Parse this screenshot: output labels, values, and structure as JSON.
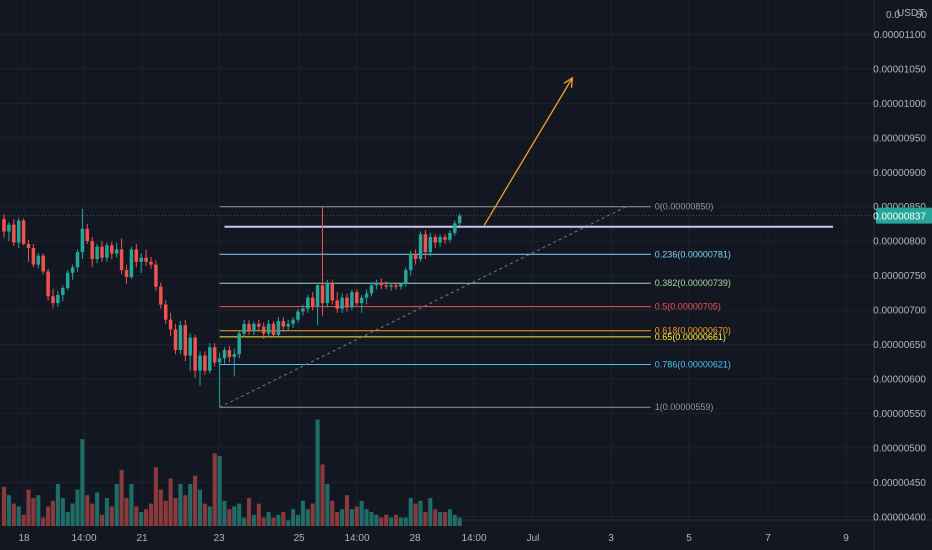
{
  "chart_data": {
    "type": "candlestick",
    "currency": "USDT",
    "scale_label_top": "0.0",
    "scale_label_extra": "50",
    "ylim": [
      3.75e-06,
      1.15e-05
    ],
    "y_ticks": [
      {
        "label": "0.00001100",
        "value": 1.1e-05
      },
      {
        "label": "0.00001050",
        "value": 1.05e-05
      },
      {
        "label": "0.00001000",
        "value": 1e-05
      },
      {
        "label": "0.00000950",
        "value": 9.5e-06
      },
      {
        "label": "0.00000900",
        "value": 9e-06
      },
      {
        "label": "0.00000850",
        "value": 8.5e-06
      },
      {
        "label": "0.00000800",
        "value": 8e-06
      },
      {
        "label": "0.00000750",
        "value": 7.5e-06
      },
      {
        "label": "0.00000700",
        "value": 7e-06
      },
      {
        "label": "0.00000650",
        "value": 6.5e-06
      },
      {
        "label": "0.00000600",
        "value": 6e-06
      },
      {
        "label": "0.00000550",
        "value": 5.5e-06
      },
      {
        "label": "0.00000500",
        "value": 5e-06
      },
      {
        "label": "0.00000450",
        "value": 4.5e-06
      },
      {
        "label": "0.00000400",
        "value": 4e-06
      }
    ],
    "x_ticks": [
      "18",
      "14:00",
      "21",
      "23",
      "25",
      "14:00",
      "28",
      "14:00",
      "Jul",
      "3",
      "5",
      "7",
      "9"
    ],
    "current_price": {
      "label": "0.00000837",
      "value": 8.37e-06,
      "color": "#26a69a"
    },
    "colors": {
      "up": "#26a69a",
      "down": "#ef5350",
      "volume_up": "#1f6d66",
      "volume_down": "#8a3a3d",
      "background": "#131722",
      "grid": "#1e222d",
      "projection_arrow": "#f7a21b",
      "resistance_line": "#d1c4e9"
    },
    "fib_levels": [
      {
        "ratio": "0",
        "value": 8.5e-06,
        "label": "0(0.00000850)",
        "color": "#9598a1"
      },
      {
        "ratio": "0.236",
        "value": 7.81e-06,
        "label": "0.236(0.00000781)",
        "color": "#81d4fa"
      },
      {
        "ratio": "0.382",
        "value": 7.39e-06,
        "label": "0.382(0.00000739)",
        "color": "#a5d6a7"
      },
      {
        "ratio": "0.5",
        "value": 7.05e-06,
        "label": "0.5(0.00000705)",
        "color": "#ef5350"
      },
      {
        "ratio": "0.618",
        "value": 6.7e-06,
        "label": "0.618(0.00000670)",
        "color": "#f7a21b"
      },
      {
        "ratio": "0.65",
        "value": 6.61e-06,
        "label": "0.65(0.00000661)",
        "color": "#ffeb3b"
      },
      {
        "ratio": "0.786",
        "value": 6.21e-06,
        "label": "0.786(0.00000621)",
        "color": "#4fc3f7"
      },
      {
        "ratio": "1",
        "value": 5.59e-06,
        "label": "1(0.00000559)",
        "color": "#9598a1"
      }
    ],
    "resistance_level": 8.21e-06,
    "trend_line": {
      "from": {
        "bar": 44,
        "value": 5.59e-06
      },
      "to": {
        "bar": 127,
        "value": 8.5e-06
      }
    },
    "projection_arrow": {
      "from": {
        "bar": 98,
        "value": 8.23e-06
      },
      "to": {
        "bar": 116,
        "value": 1.037e-05
      }
    },
    "candles": [
      {
        "o": 8.32e-06,
        "h": 8.39e-06,
        "l": 8.05e-06,
        "c": 8.14e-06
      },
      {
        "o": 8.14e-06,
        "h": 8.28e-06,
        "l": 8e-06,
        "c": 8.24e-06
      },
      {
        "o": 8.24e-06,
        "h": 8.32e-06,
        "l": 7.93e-06,
        "c": 7.98e-06
      },
      {
        "o": 7.98e-06,
        "h": 8.34e-06,
        "l": 7.9e-06,
        "c": 8.3e-06
      },
      {
        "o": 8.3e-06,
        "h": 8.33e-06,
        "l": 7.94e-06,
        "c": 7.96e-06
      },
      {
        "o": 7.96e-06,
        "h": 8.02e-06,
        "l": 7.7e-06,
        "c": 7.9e-06
      },
      {
        "o": 7.9e-06,
        "h": 7.96e-06,
        "l": 7.62e-06,
        "c": 7.66e-06
      },
      {
        "o": 7.66e-06,
        "h": 7.83e-06,
        "l": 7.6e-06,
        "c": 7.79e-06
      },
      {
        "o": 7.79e-06,
        "h": 7.82e-06,
        "l": 7.52e-06,
        "c": 7.56e-06
      },
      {
        "o": 7.56e-06,
        "h": 7.6e-06,
        "l": 7.14e-06,
        "c": 7.2e-06
      },
      {
        "o": 7.2e-06,
        "h": 7.31e-06,
        "l": 7.02e-06,
        "c": 7.1e-06
      },
      {
        "o": 7.1e-06,
        "h": 7.28e-06,
        "l": 7.04e-06,
        "c": 7.22e-06
      },
      {
        "o": 7.22e-06,
        "h": 7.36e-06,
        "l": 7.13e-06,
        "c": 7.32e-06
      },
      {
        "o": 7.32e-06,
        "h": 7.58e-06,
        "l": 7.29e-06,
        "c": 7.54e-06
      },
      {
        "o": 7.54e-06,
        "h": 7.66e-06,
        "l": 7.44e-06,
        "c": 7.62e-06
      },
      {
        "o": 7.62e-06,
        "h": 7.88e-06,
        "l": 7.56e-06,
        "c": 7.84e-06
      },
      {
        "o": 7.84e-06,
        "h": 8.47e-06,
        "l": 7.74e-06,
        "c": 8.18e-06
      },
      {
        "o": 8.18e-06,
        "h": 8.25e-06,
        "l": 7.96e-06,
        "c": 8e-06
      },
      {
        "o": 8e-06,
        "h": 8.06e-06,
        "l": 7.62e-06,
        "c": 7.74e-06
      },
      {
        "o": 7.74e-06,
        "h": 7.96e-06,
        "l": 7.68e-06,
        "c": 7.92e-06
      },
      {
        "o": 7.92e-06,
        "h": 8e-06,
        "l": 7.7e-06,
        "c": 7.76e-06
      },
      {
        "o": 7.76e-06,
        "h": 7.98e-06,
        "l": 7.7e-06,
        "c": 7.94e-06
      },
      {
        "o": 7.94e-06,
        "h": 7.99e-06,
        "l": 7.74e-06,
        "c": 7.82e-06
      },
      {
        "o": 7.82e-06,
        "h": 7.98e-06,
        "l": 7.76e-06,
        "c": 7.88e-06
      },
      {
        "o": 7.88e-06,
        "h": 8.04e-06,
        "l": 7.52e-06,
        "c": 7.58e-06
      },
      {
        "o": 7.58e-06,
        "h": 7.66e-06,
        "l": 7.38e-06,
        "c": 7.48e-06
      },
      {
        "o": 7.48e-06,
        "h": 7.92e-06,
        "l": 7.45e-06,
        "c": 7.88e-06
      },
      {
        "o": 7.88e-06,
        "h": 7.96e-06,
        "l": 7.62e-06,
        "c": 7.7e-06
      },
      {
        "o": 7.7e-06,
        "h": 7.82e-06,
        "l": 7.54e-06,
        "c": 7.76e-06
      },
      {
        "o": 7.76e-06,
        "h": 7.88e-06,
        "l": 7.64e-06,
        "c": 7.7e-06
      },
      {
        "o": 7.7e-06,
        "h": 7.77e-06,
        "l": 7.6e-06,
        "c": 7.66e-06
      },
      {
        "o": 7.66e-06,
        "h": 7.72e-06,
        "l": 7.28e-06,
        "c": 7.34e-06
      },
      {
        "o": 7.34e-06,
        "h": 7.4e-06,
        "l": 7.02e-06,
        "c": 7.08e-06
      },
      {
        "o": 7.08e-06,
        "h": 7.14e-06,
        "l": 6.8e-06,
        "c": 6.86e-06
      },
      {
        "o": 6.86e-06,
        "h": 6.96e-06,
        "l": 6.62e-06,
        "c": 6.72e-06
      },
      {
        "o": 6.72e-06,
        "h": 6.8e-06,
        "l": 6.36e-06,
        "c": 6.42e-06
      },
      {
        "o": 6.42e-06,
        "h": 6.84e-06,
        "l": 6.36e-06,
        "c": 6.78e-06
      },
      {
        "o": 6.78e-06,
        "h": 6.86e-06,
        "l": 6.26e-06,
        "c": 6.34e-06
      },
      {
        "o": 6.34e-06,
        "h": 6.66e-06,
        "l": 6.12e-06,
        "c": 6.6e-06
      },
      {
        "o": 6.6e-06,
        "h": 6.64e-06,
        "l": 6.02e-06,
        "c": 6.12e-06
      },
      {
        "o": 6.12e-06,
        "h": 6.4e-06,
        "l": 5.9e-06,
        "c": 6.34e-06
      },
      {
        "o": 6.34e-06,
        "h": 6.4e-06,
        "l": 6.06e-06,
        "c": 6.12e-06
      },
      {
        "o": 6.12e-06,
        "h": 6.52e-06,
        "l": 6.08e-06,
        "c": 6.46e-06
      },
      {
        "o": 6.46e-06,
        "h": 6.52e-06,
        "l": 6.18e-06,
        "c": 6.24e-06
      },
      {
        "o": 6.24e-06,
        "h": 6.38e-06,
        "l": 5.59e-06,
        "c": 6.3e-06
      },
      {
        "o": 6.3e-06,
        "h": 6.46e-06,
        "l": 6.22e-06,
        "c": 6.42e-06
      },
      {
        "o": 6.42e-06,
        "h": 6.48e-06,
        "l": 6.24e-06,
        "c": 6.32e-06
      },
      {
        "o": 6.32e-06,
        "h": 6.44e-06,
        "l": 6.04e-06,
        "c": 6.36e-06
      },
      {
        "o": 6.36e-06,
        "h": 6.7e-06,
        "l": 6.3e-06,
        "c": 6.66e-06
      },
      {
        "o": 6.66e-06,
        "h": 6.86e-06,
        "l": 6.6e-06,
        "c": 6.8e-06
      },
      {
        "o": 6.8e-06,
        "h": 6.86e-06,
        "l": 6.64e-06,
        "c": 6.7e-06
      },
      {
        "o": 6.7e-06,
        "h": 6.84e-06,
        "l": 6.64e-06,
        "c": 6.8e-06
      },
      {
        "o": 6.8e-06,
        "h": 6.86e-06,
        "l": 6.7e-06,
        "c": 6.76e-06
      },
      {
        "o": 6.76e-06,
        "h": 6.82e-06,
        "l": 6.58e-06,
        "c": 6.66e-06
      },
      {
        "o": 6.66e-06,
        "h": 6.86e-06,
        "l": 6.6e-06,
        "c": 6.8e-06
      },
      {
        "o": 6.8e-06,
        "h": 6.84e-06,
        "l": 6.6e-06,
        "c": 6.64e-06
      },
      {
        "o": 6.64e-06,
        "h": 6.9e-06,
        "l": 6.6e-06,
        "c": 6.84e-06
      },
      {
        "o": 6.84e-06,
        "h": 6.9e-06,
        "l": 6.68e-06,
        "c": 6.76e-06
      },
      {
        "o": 6.76e-06,
        "h": 6.86e-06,
        "l": 6.7e-06,
        "c": 6.8e-06
      },
      {
        "o": 6.8e-06,
        "h": 6.9e-06,
        "l": 6.74e-06,
        "c": 6.86e-06
      },
      {
        "o": 6.86e-06,
        "h": 7.02e-06,
        "l": 6.82e-06,
        "c": 6.98e-06
      },
      {
        "o": 6.98e-06,
        "h": 7.08e-06,
        "l": 6.92e-06,
        "c": 7.02e-06
      },
      {
        "o": 7.02e-06,
        "h": 7.22e-06,
        "l": 6.96e-06,
        "c": 7.18e-06
      },
      {
        "o": 7.18e-06,
        "h": 7.26e-06,
        "l": 7e-06,
        "c": 7.06e-06
      },
      {
        "o": 7.06e-06,
        "h": 7.4e-06,
        "l": 6.78e-06,
        "c": 7.36e-06
      },
      {
        "o": 7.36e-06,
        "h": 8.5e-06,
        "l": 6.92e-06,
        "c": 7.1e-06
      },
      {
        "o": 7.1e-06,
        "h": 7.44e-06,
        "l": 7.04e-06,
        "c": 7.38e-06
      },
      {
        "o": 7.38e-06,
        "h": 7.44e-06,
        "l": 7.08e-06,
        "c": 7.14e-06
      },
      {
        "o": 7.14e-06,
        "h": 7.26e-06,
        "l": 6.96e-06,
        "c": 7.02e-06
      },
      {
        "o": 7.02e-06,
        "h": 7.24e-06,
        "l": 6.96e-06,
        "c": 7.18e-06
      },
      {
        "o": 7.18e-06,
        "h": 7.24e-06,
        "l": 6.98e-06,
        "c": 7.04e-06
      },
      {
        "o": 7.04e-06,
        "h": 7.3e-06,
        "l": 7e-06,
        "c": 7.26e-06
      },
      {
        "o": 7.26e-06,
        "h": 7.3e-06,
        "l": 7.06e-06,
        "c": 7.1e-06
      },
      {
        "o": 7.1e-06,
        "h": 7.22e-06,
        "l": 6.96e-06,
        "c": 7.18e-06
      },
      {
        "o": 7.18e-06,
        "h": 7.3e-06,
        "l": 7.08e-06,
        "c": 7.24e-06
      },
      {
        "o": 7.24e-06,
        "h": 7.4e-06,
        "l": 7.2e-06,
        "c": 7.36e-06
      },
      {
        "o": 7.36e-06,
        "h": 7.44e-06,
        "l": 7.3e-06,
        "c": 7.4e-06
      },
      {
        "o": 7.4e-06,
        "h": 7.46e-06,
        "l": 7.3e-06,
        "c": 7.36e-06
      },
      {
        "o": 7.36e-06,
        "h": 7.42e-06,
        "l": 7.3e-06,
        "c": 7.34e-06
      },
      {
        "o": 7.34e-06,
        "h": 7.4e-06,
        "l": 7.28e-06,
        "c": 7.36e-06
      },
      {
        "o": 7.36e-06,
        "h": 7.4e-06,
        "l": 7.3e-06,
        "c": 7.34e-06
      },
      {
        "o": 7.34e-06,
        "h": 7.4e-06,
        "l": 7.3e-06,
        "c": 7.38e-06
      },
      {
        "o": 7.38e-06,
        "h": 7.62e-06,
        "l": 7.34e-06,
        "c": 7.58e-06
      },
      {
        "o": 7.58e-06,
        "h": 7.86e-06,
        "l": 7.5e-06,
        "c": 7.82e-06
      },
      {
        "o": 7.82e-06,
        "h": 7.88e-06,
        "l": 7.66e-06,
        "c": 7.74e-06
      },
      {
        "o": 7.74e-06,
        "h": 8.14e-06,
        "l": 7.7e-06,
        "c": 8.1e-06
      },
      {
        "o": 8.1e-06,
        "h": 8.16e-06,
        "l": 7.74e-06,
        "c": 7.84e-06
      },
      {
        "o": 7.84e-06,
        "h": 8.12e-06,
        "l": 7.78e-06,
        "c": 8.06e-06
      },
      {
        "o": 8.06e-06,
        "h": 8.1e-06,
        "l": 7.9e-06,
        "c": 7.98e-06
      },
      {
        "o": 7.98e-06,
        "h": 8.1e-06,
        "l": 7.92e-06,
        "c": 8.06e-06
      },
      {
        "o": 8.06e-06,
        "h": 8.1e-06,
        "l": 7.96e-06,
        "c": 8.02e-06
      },
      {
        "o": 8.02e-06,
        "h": 8.16e-06,
        "l": 7.98e-06,
        "c": 8.12e-06
      },
      {
        "o": 8.12e-06,
        "h": 8.3e-06,
        "l": 8.08e-06,
        "c": 8.26e-06
      },
      {
        "o": 8.26e-06,
        "h": 8.4e-06,
        "l": 8.22e-06,
        "c": 8.37e-06
      }
    ],
    "volume": [
      0.28,
      0.22,
      0.16,
      0.14,
      0.08,
      0.26,
      0.2,
      0.22,
      0.06,
      0.14,
      0.18,
      0.3,
      0.2,
      0.1,
      0.16,
      0.26,
      0.62,
      0.22,
      0.16,
      0.24,
      0.08,
      0.2,
      0.14,
      0.3,
      0.4,
      0.2,
      0.3,
      0.14,
      0.1,
      0.12,
      0.16,
      0.42,
      0.26,
      0.18,
      0.34,
      0.2,
      0.3,
      0.22,
      0.3,
      0.36,
      0.26,
      0.16,
      0.14,
      0.52,
      0.5,
      0.18,
      0.12,
      0.14,
      0.16,
      0.06,
      0.2,
      0.08,
      0.16,
      0.06,
      0.1,
      0.06,
      0.08,
      0.1,
      0.04,
      0.12,
      0.08,
      0.18,
      0.12,
      0.16,
      0.76,
      0.44,
      0.3,
      0.18,
      0.1,
      0.12,
      0.22,
      0.12,
      0.14,
      0.18,
      0.12,
      0.1,
      0.08,
      0.06,
      0.08,
      0.06,
      0.08,
      0.06,
      0.06,
      0.2,
      0.16,
      0.18,
      0.1,
      0.2,
      0.12,
      0.1,
      0.1,
      0.12,
      0.08,
      0.06
    ]
  }
}
